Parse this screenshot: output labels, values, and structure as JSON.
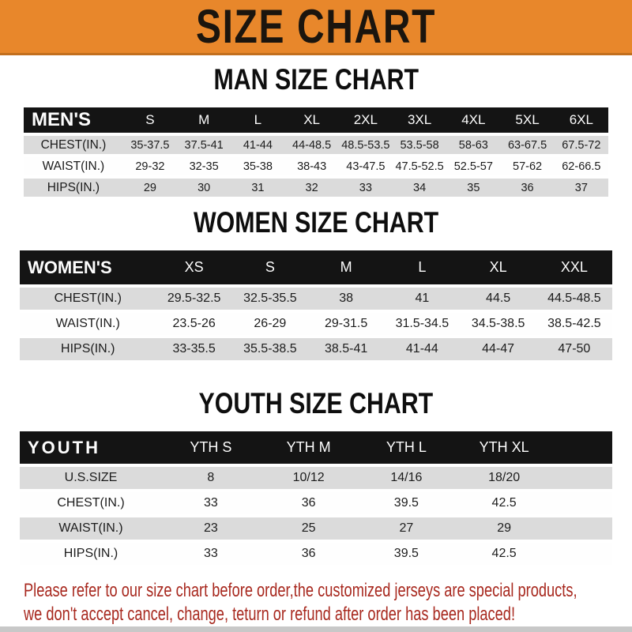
{
  "banner": {
    "title": "SIZE CHART"
  },
  "colors": {
    "banner-bg": "#E8872B",
    "banner-border": "#C26F1E",
    "header-bar": "#141414",
    "row-alt": "#DBDBDB",
    "text": "#1C1C1C",
    "notice": "#A8291F",
    "footer-strip": "#C8C8C8"
  },
  "sections": [
    {
      "heading": "MAN SIZE CHART",
      "table": {
        "label": "MEN'S",
        "columns": [
          "S",
          "M",
          "L",
          "XL",
          "2XL",
          "3XL",
          "4XL",
          "5XL",
          "6XL"
        ],
        "rows": [
          {
            "label": "CHEST(IN.)",
            "values": [
              "35-37.5",
              "37.5-41",
              "41-44",
              "44-48.5",
              "48.5-53.5",
              "53.5-58",
              "58-63",
              "63-67.5",
              "67.5-72"
            ]
          },
          {
            "label": "WAIST(IN.)",
            "values": [
              "29-32",
              "32-35",
              "35-38",
              "38-43",
              "43-47.5",
              "47.5-52.5",
              "52.5-57",
              "57-62",
              "62-66.5"
            ]
          },
          {
            "label": "HIPS(IN.)",
            "values": [
              "29",
              "30",
              "31",
              "32",
              "33",
              "34",
              "35",
              "36",
              "37"
            ]
          }
        ]
      }
    },
    {
      "heading": "WOMEN SIZE CHART",
      "table": {
        "label": "WOMEN'S",
        "columns": [
          "XS",
          "S",
          "M",
          "L",
          "XL",
          "XXL"
        ],
        "rows": [
          {
            "label": "CHEST(IN.)",
            "values": [
              "29.5-32.5",
              "32.5-35.5",
              "38",
              "41",
              "44.5",
              "44.5-48.5"
            ]
          },
          {
            "label": "WAIST(IN.)",
            "values": [
              "23.5-26",
              "26-29",
              "29-31.5",
              "31.5-34.5",
              "34.5-38.5",
              "38.5-42.5"
            ]
          },
          {
            "label": "HIPS(IN.)",
            "values": [
              "33-35.5",
              "35.5-38.5",
              "38.5-41",
              "41-44",
              "44-47",
              "47-50"
            ]
          }
        ]
      }
    },
    {
      "heading": "YOUTH SIZE CHART",
      "table": {
        "label": "YOUTH",
        "columns": [
          "YTH S",
          "YTH M",
          "YTH L",
          "YTH XL"
        ],
        "rows": [
          {
            "label": "U.S.SIZE",
            "values": [
              "8",
              "10/12",
              "14/16",
              "18/20"
            ]
          },
          {
            "label": "CHEST(IN.)",
            "values": [
              "33",
              "36",
              "39.5",
              "42.5"
            ]
          },
          {
            "label": "WAIST(IN.)",
            "values": [
              "23",
              "25",
              "27",
              "29"
            ]
          },
          {
            "label": "HIPS(IN.)",
            "values": [
              "33",
              "36",
              "39.5",
              "42.5"
            ]
          }
        ]
      }
    }
  ],
  "notice": {
    "lines": [
      "Please refer to our size chart before order,the customized jerseys are special products,",
      "we don't accept cancel, change, teturn or refund after order has been placed!"
    ]
  }
}
